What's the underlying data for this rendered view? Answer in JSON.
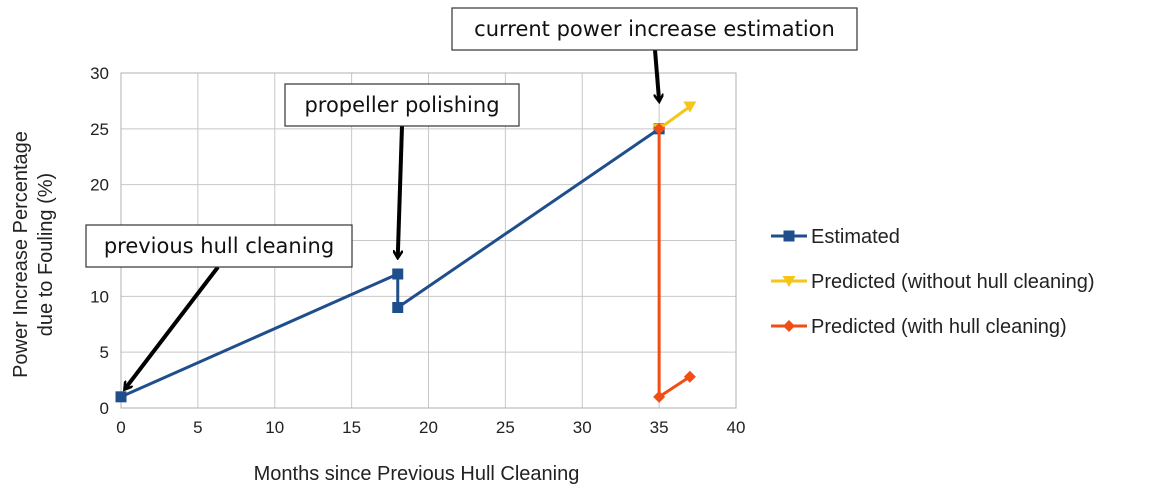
{
  "chart_data": {
    "type": "line",
    "xlabel": "Months since Previous Hull Cleaning",
    "ylabel_lines": [
      "Power Increase Percentage",
      "due to Fouling (%)"
    ],
    "xlim": [
      0,
      40
    ],
    "ylim": [
      0,
      30
    ],
    "xticks": [
      0,
      5,
      10,
      15,
      20,
      25,
      30,
      35,
      40
    ],
    "yticks": [
      0,
      5,
      10,
      15,
      20,
      25,
      30
    ],
    "grid": true,
    "legend_position": "right",
    "series": [
      {
        "name": "Estimated",
        "color": "#1f4e8c",
        "marker": "square",
        "x": [
          0,
          18,
          18,
          35
        ],
        "y": [
          1,
          12,
          9,
          25
        ]
      },
      {
        "name": "Predicted (without hull cleaning)",
        "color": "#f5c518",
        "marker": "triangle-down",
        "x": [
          35,
          37
        ],
        "y": [
          25,
          27
        ]
      },
      {
        "name": "Predicted (with hull cleaning)",
        "color": "#f04e14",
        "marker": "diamond",
        "x": [
          35,
          35,
          37
        ],
        "y": [
          25,
          1,
          2.8
        ]
      }
    ],
    "annotations": [
      {
        "text": "previous hull cleaning",
        "target": [
          0,
          1
        ]
      },
      {
        "text": "propeller polishing",
        "target": [
          18,
          13.5
        ]
      },
      {
        "text": "current power increase estimation",
        "target": [
          35,
          27.5
        ]
      }
    ]
  }
}
